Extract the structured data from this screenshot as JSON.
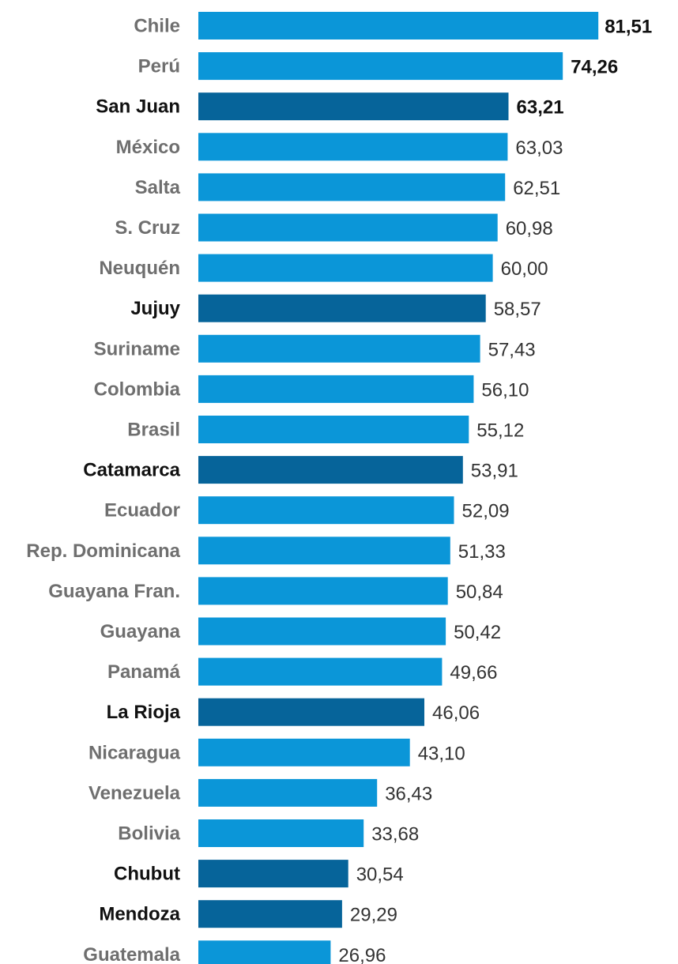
{
  "chart_data": {
    "type": "bar",
    "orientation": "horizontal",
    "categories": [
      "Chile",
      "Perú",
      "San Juan",
      "México",
      "Salta",
      "S. Cruz",
      "Neuquén",
      "Jujuy",
      "Suriname",
      "Colombia",
      "Brasil",
      "Catamarca",
      "Ecuador",
      "Rep. Dominicana",
      "Guayana Fran.",
      "Guayana",
      "Panamá",
      "La Rioja",
      "Nicaragua",
      "Venezuela",
      "Bolivia",
      "Chubut",
      "Mendoza",
      "Guatemala"
    ],
    "values": [
      81.51,
      74.26,
      63.21,
      63.03,
      62.51,
      60.98,
      60.0,
      58.57,
      57.43,
      56.1,
      55.12,
      53.91,
      52.09,
      51.33,
      50.84,
      50.42,
      49.66,
      46.06,
      43.1,
      36.43,
      33.68,
      30.54,
      29.29,
      26.96
    ],
    "value_labels": [
      "81,51",
      "74,26",
      "63,21",
      "63,03",
      "62,51",
      "60,98",
      "60,00",
      "58,57",
      "57,43",
      "56,10",
      "55,12",
      "53,91",
      "52,09",
      "51,33",
      "50,84",
      "50,42",
      "49,66",
      "46,06",
      "43,10",
      "36,43",
      "33,68",
      "30,54",
      "29,29",
      "26,96"
    ],
    "highlighted": [
      "San Juan",
      "Jujuy",
      "Catamarca",
      "La Rioja",
      "Chubut",
      "Mendoza"
    ],
    "emphasized_values": [
      "Chile",
      "Perú",
      "San Juan"
    ],
    "title": "",
    "xlabel": "",
    "ylabel": "",
    "xlim": [
      0,
      82
    ],
    "grid": false,
    "colors": {
      "bar": "#0b96d8",
      "bar_highlight": "#06649a",
      "label": "#6f6f6f",
      "label_highlight": "#111111",
      "value_text": "#333333",
      "value_text_strong": "#111111"
    }
  }
}
